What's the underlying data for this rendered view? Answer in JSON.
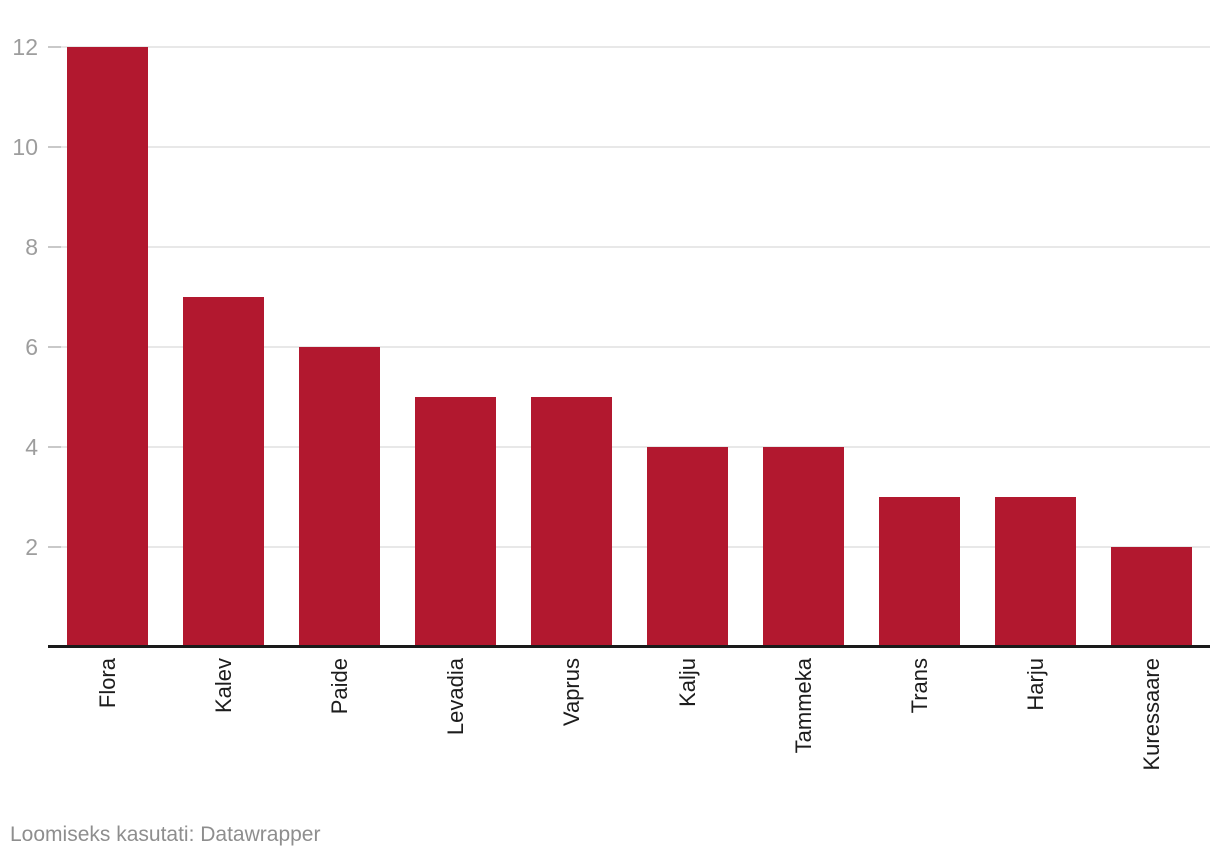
{
  "chart_data": {
    "type": "bar",
    "categories": [
      "Flora",
      "Kalev",
      "Paide",
      "Levadia",
      "Vaprus",
      "Kalju",
      "Tammeka",
      "Trans",
      "Harju",
      "Kuressaare"
    ],
    "values": [
      12,
      7,
      6,
      5,
      5,
      4,
      4,
      3,
      3,
      2
    ],
    "title": "",
    "xlabel": "",
    "ylabel": "",
    "ylim": [
      0,
      12
    ],
    "yticks": [
      2,
      4,
      6,
      8,
      10,
      12
    ],
    "grid": true,
    "legend": "none",
    "bar_color": "#b2182f"
  },
  "colors": {
    "bar": "#b2182f",
    "gridline": "#e8e8e8",
    "tick": "#c9c9c9",
    "axis_line": "#1a1a1a",
    "y_label": "#9d9d9d",
    "x_label": "#1d1d1d",
    "footer_text": "#8e8e8e",
    "background": "#ffffff"
  },
  "footer": {
    "attribution": "Loomiseks kasutati: Datawrapper"
  }
}
